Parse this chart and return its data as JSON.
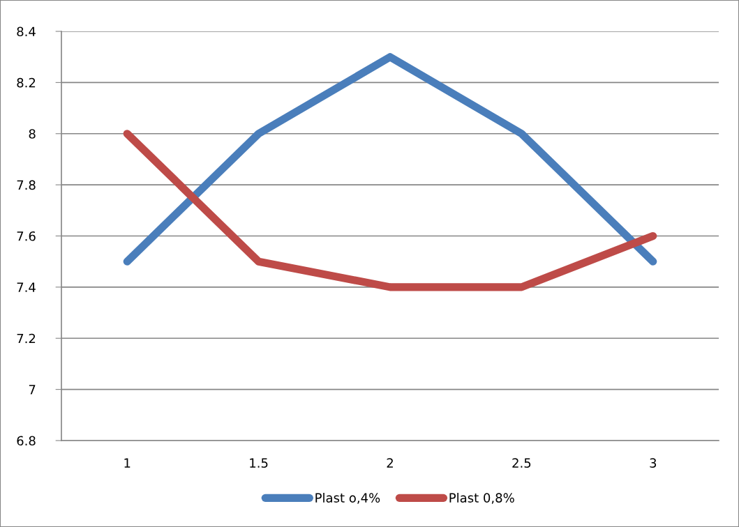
{
  "chart_data": {
    "type": "line",
    "categories": [
      "1",
      "1.5",
      "2",
      "2.5",
      "3"
    ],
    "series": [
      {
        "name": "Plast o,4%",
        "color": "#4a7ebb",
        "values": [
          7.5,
          8.0,
          8.3,
          8.0,
          7.5
        ]
      },
      {
        "name": "Plast 0,8%",
        "color": "#be4b48",
        "values": [
          8.0,
          7.5,
          7.4,
          7.4,
          7.6
        ]
      }
    ],
    "ylim": [
      6.8,
      8.4
    ],
    "yticks": [
      6.8,
      7,
      7.2,
      7.4,
      7.6,
      7.8,
      8,
      8.2,
      8.4
    ],
    "grid": "y",
    "legend": "bottom",
    "line_style": "solid"
  }
}
